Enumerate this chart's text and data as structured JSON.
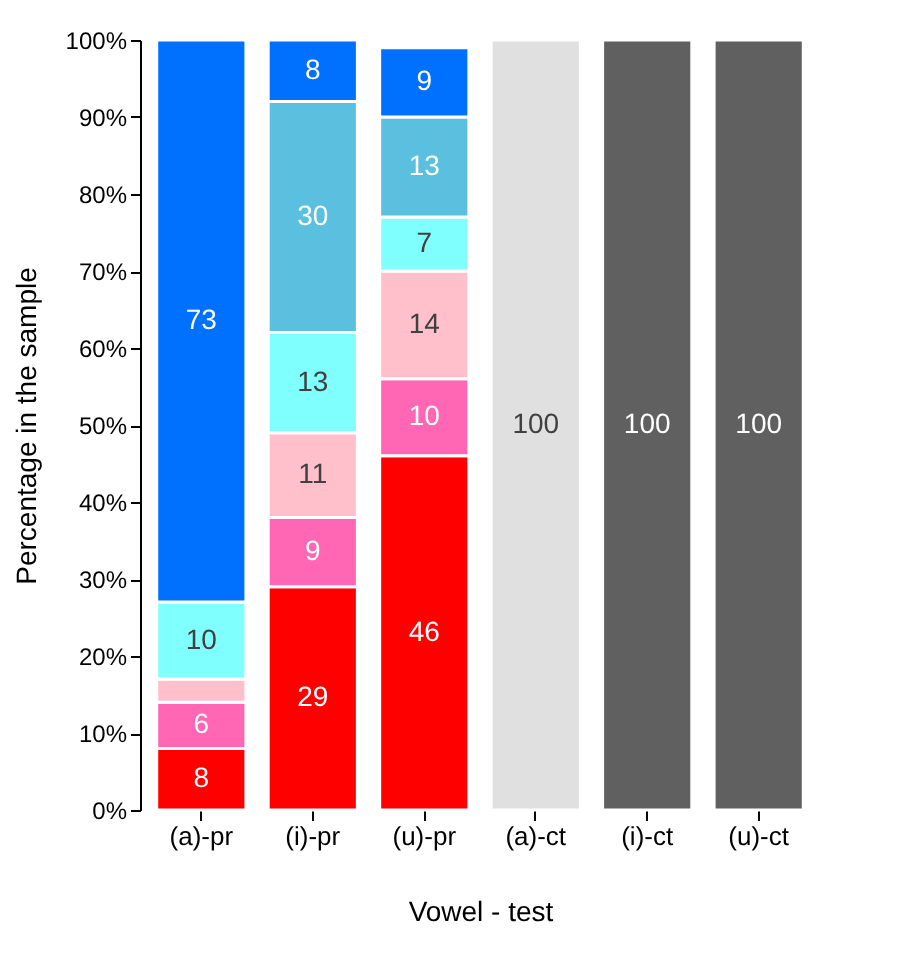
{
  "chart_data": {
    "type": "bar",
    "stacked": true,
    "xlabel": "Vowel - test",
    "ylabel": "Percentage in the sample",
    "categories": [
      "(a)-pr",
      "(i)-pr",
      "(u)-pr",
      "(a)-ct",
      "(i)-ct",
      "(u)-ct"
    ],
    "ylim": [
      0,
      100
    ],
    "yticks": [
      {
        "value": 0,
        "label": "0%"
      },
      {
        "value": 10,
        "label": "10%"
      },
      {
        "value": 20,
        "label": "20%"
      },
      {
        "value": 30,
        "label": "30%"
      },
      {
        "value": 40,
        "label": "40%"
      },
      {
        "value": 50,
        "label": "50%"
      },
      {
        "value": 60,
        "label": "60%"
      },
      {
        "value": 70,
        "label": "70%"
      },
      {
        "value": 80,
        "label": "80%"
      },
      {
        "value": 90,
        "label": "90%"
      },
      {
        "value": 100,
        "label": "100%"
      }
    ],
    "grid": false,
    "series": [
      {
        "color": "#ff0000",
        "values": [
          8,
          29,
          46,
          null,
          null,
          null
        ],
        "value_labels": [
          "8",
          "29",
          "46",
          null,
          null,
          null
        ]
      },
      {
        "color": "#ff66b3",
        "values": [
          6,
          9,
          10,
          null,
          null,
          null
        ],
        "value_labels": [
          "6",
          "9",
          "10",
          null,
          null,
          null
        ]
      },
      {
        "color": "#ffc0cb",
        "values": [
          3,
          11,
          14,
          null,
          null,
          null
        ],
        "value_labels": [
          null,
          "11",
          "14",
          null,
          null,
          null
        ]
      },
      {
        "color": "#80ffff",
        "values": [
          10,
          13,
          7,
          null,
          null,
          null
        ],
        "value_labels": [
          "10",
          "13",
          "7",
          null,
          null,
          null
        ]
      },
      {
        "color": "#5bbfdf",
        "values": [
          null,
          30,
          13,
          null,
          null,
          null
        ],
        "value_labels": [
          null,
          "30",
          "13",
          null,
          null,
          null
        ]
      },
      {
        "color": "#0070ff",
        "values": [
          73,
          8,
          9,
          null,
          null,
          null
        ],
        "value_labels": [
          "73",
          "8",
          "9",
          null,
          null,
          null
        ]
      },
      {
        "colors": [
          null,
          null,
          null,
          "#e0e0e0",
          "#606060",
          "#606060"
        ],
        "values": [
          null,
          null,
          null,
          100,
          100,
          100
        ],
        "value_labels": [
          null,
          null,
          null,
          "100",
          "100",
          "100"
        ]
      }
    ]
  }
}
